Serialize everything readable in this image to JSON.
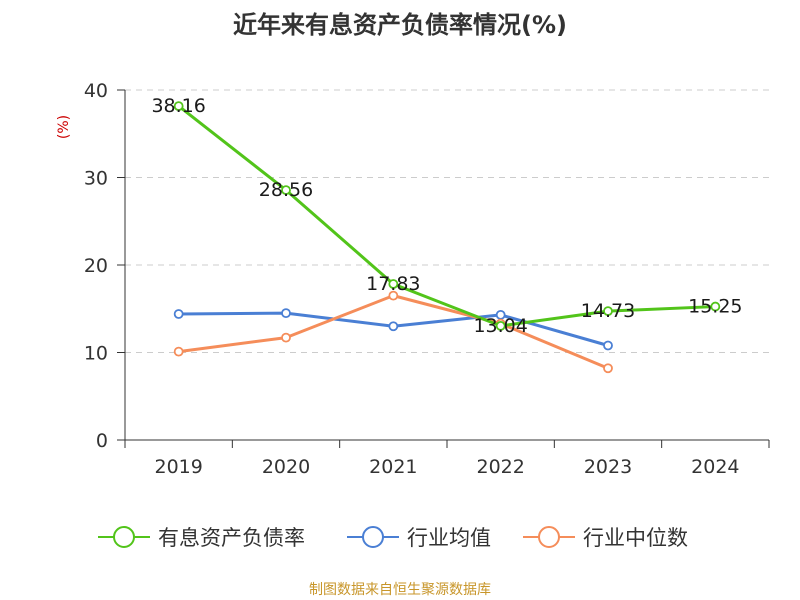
{
  "chart_data": {
    "type": "line",
    "title": "近年来有息资产负债率情况(%)",
    "ylabel": "(%)",
    "categories": [
      "2019",
      "2020",
      "2021",
      "2022",
      "2023",
      "2024"
    ],
    "ylim": [
      0,
      40
    ],
    "yticks": [
      "0",
      "10",
      "20",
      "30",
      "40"
    ],
    "grid": true,
    "legend_position": "bottom",
    "series": [
      {
        "name": "有息资产负债率",
        "color": "#52c41a",
        "values": [
          38.16,
          28.56,
          17.83,
          13.04,
          14.73,
          15.25
        ],
        "labels": [
          "38.16",
          "28.56",
          "17.83",
          "13.04",
          "14.73",
          "15.25"
        ]
      },
      {
        "name": "行业均值",
        "color": "#4a7fd4",
        "values": [
          14.4,
          14.5,
          13.0,
          14.3,
          10.8,
          null
        ]
      },
      {
        "name": "行业中位数",
        "color": "#f58d5a",
        "values": [
          10.1,
          11.7,
          16.5,
          13.3,
          8.2,
          null
        ]
      }
    ],
    "source": "制图数据来自恒生聚源数据库",
    "colors": {
      "title": "#333333",
      "ylabel": "#cc0000",
      "source": "#c8962a",
      "grid": "#cccccc"
    }
  }
}
